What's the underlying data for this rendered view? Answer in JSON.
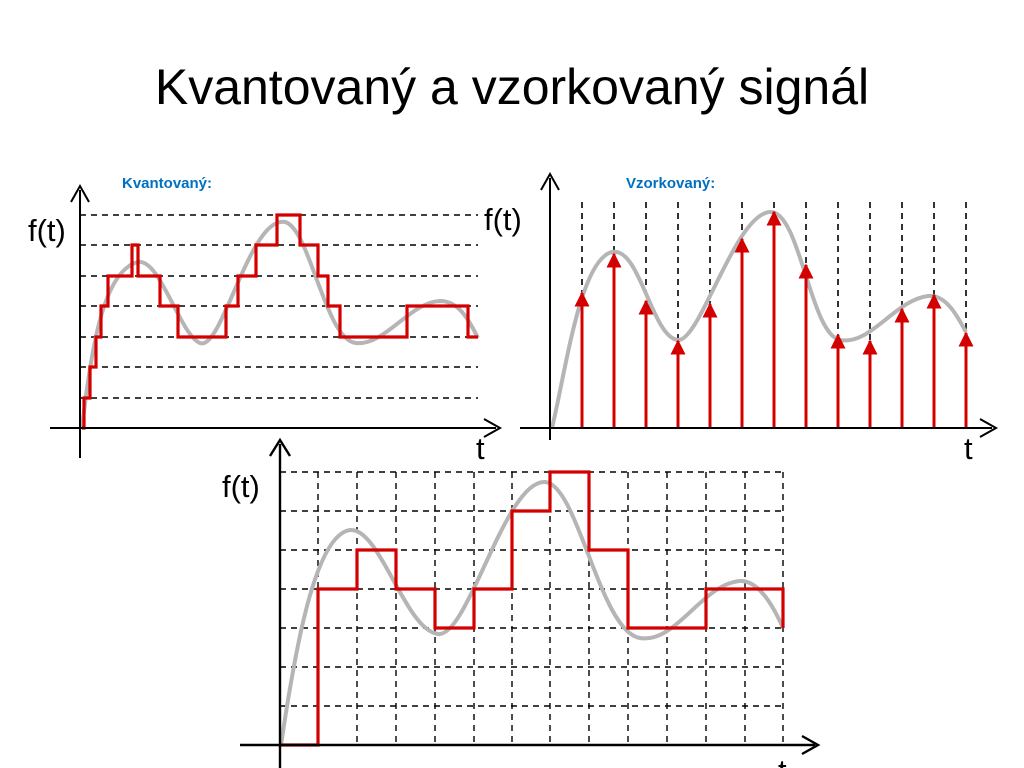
{
  "slide": {
    "title": "Kvantovaný a vzorkovaný signál",
    "accent_color": "#0070c0",
    "signal_color": "#d40000",
    "curve_color": "#b5b5b5"
  },
  "panels": {
    "quantized": {
      "label": "Kvantovaný:",
      "y_label": "f(t)",
      "x_label": "t"
    },
    "sampled": {
      "label": "Vzorkovaný:",
      "y_label": "f(t)",
      "x_label": "t"
    },
    "combined": {
      "y_label": "f(t)",
      "x_label": "t"
    }
  }
}
